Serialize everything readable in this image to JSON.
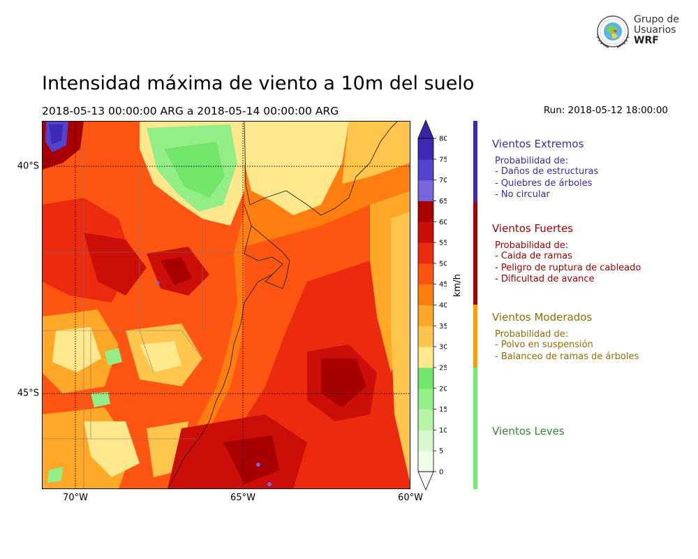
{
  "title": "Intensidad máxima de viento a 10m del suelo",
  "subtitle": "2018-05-13 00:00:00 ARG  a  2018-05-14 00:00:00 ARG",
  "run": "Run: 2018-05-12 18:00:00",
  "logo": {
    "line1": "Grupo de",
    "line2": "Usuarios",
    "line3": "WRF"
  },
  "map": {
    "lon_range": [
      -71,
      -60
    ],
    "lat_range": [
      -47.1,
      -39.0
    ],
    "lon_ticks": [
      {
        "value": -70,
        "label": "70°W"
      },
      {
        "value": -65,
        "label": "65°W"
      },
      {
        "value": -60,
        "label": "60°W"
      }
    ],
    "lat_ticks": [
      {
        "value": -40,
        "label": "40°S"
      },
      {
        "value": -45,
        "label": "45°S"
      }
    ]
  },
  "colorbar": {
    "unit": "km/h",
    "levels": [
      0,
      5,
      10,
      15,
      20,
      25,
      30,
      35,
      40,
      45,
      50,
      55,
      60,
      65,
      70,
      75,
      80
    ],
    "colors": [
      "#eefce8",
      "#d6f8cc",
      "#b7f5a8",
      "#94ee88",
      "#72e66a",
      "#ffe78c",
      "#ffc54d",
      "#ffa726",
      "#ff7e0f",
      "#ff5512",
      "#ec2a0e",
      "#cc0e08",
      "#a80000",
      "#7766dd",
      "#5242cc",
      "#3e28b4"
    ],
    "under_color": "#ffffff",
    "over_color": "#3a24a8"
  },
  "categories": [
    {
      "title": "Vientos Extremos",
      "header": "Probabilidad de:",
      "items": [
        "- Daños de estructuras",
        "- Quiebres de árboles",
        "- No circular"
      ],
      "color": "#3a28aa",
      "bar_color": "#3f2bb0"
    },
    {
      "title": "Vientos Fuertes",
      "header": "Probabilidad de:",
      "items": [
        "- Caida de ramas",
        "- Peligro de ruptura de cableado",
        "- Dificultad de avance"
      ],
      "color": "#a00000",
      "bar_color": "#a80000"
    },
    {
      "title": "Vientos Moderados",
      "header": "Probabilidad de:",
      "items": [
        "- Polvo en suspensión",
        "- Balanceo de ramas de árboles"
      ],
      "color": "#9a6a00",
      "bar_color": "#ff9e00"
    },
    {
      "title": "Vientos Leves",
      "header": "",
      "items": [],
      "color": "#2e8a2e",
      "bar_color": "#72ee6e"
    }
  ]
}
